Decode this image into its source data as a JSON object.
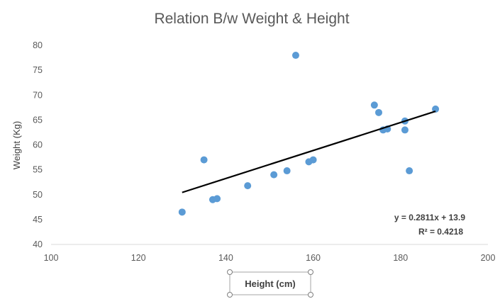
{
  "chart_data": {
    "type": "scatter",
    "title": "Relation B/w Weight & Height",
    "xlabel": "Height (cm)",
    "ylabel": "Weight (Kg)",
    "xlim": [
      100,
      200
    ],
    "ylim": [
      40,
      80
    ],
    "xticks": [
      100,
      120,
      140,
      160,
      180,
      200
    ],
    "yticks": [
      40,
      45,
      50,
      55,
      60,
      65,
      70,
      75,
      80
    ],
    "grid": false,
    "point_color": "#5b9bd5",
    "points": [
      {
        "x": 130,
        "y": 46.5
      },
      {
        "x": 135,
        "y": 57
      },
      {
        "x": 137,
        "y": 49
      },
      {
        "x": 138,
        "y": 49.2
      },
      {
        "x": 145,
        "y": 51.8
      },
      {
        "x": 151,
        "y": 54
      },
      {
        "x": 154,
        "y": 54.8
      },
      {
        "x": 156,
        "y": 78
      },
      {
        "x": 159,
        "y": 56.6
      },
      {
        "x": 160,
        "y": 57
      },
      {
        "x": 174,
        "y": 68
      },
      {
        "x": 175,
        "y": 66.5
      },
      {
        "x": 176,
        "y": 63
      },
      {
        "x": 177,
        "y": 63.2
      },
      {
        "x": 181,
        "y": 64.8
      },
      {
        "x": 181,
        "y": 63
      },
      {
        "x": 182,
        "y": 54.8
      },
      {
        "x": 188,
        "y": 67.2
      }
    ],
    "trendline": {
      "type": "linear",
      "slope": 0.2811,
      "intercept": 13.9,
      "x_range": [
        130,
        188
      ],
      "color": "#000000",
      "equation": "y = 0.2811x + 13.9",
      "r_squared": "R² = 0.4218"
    }
  }
}
